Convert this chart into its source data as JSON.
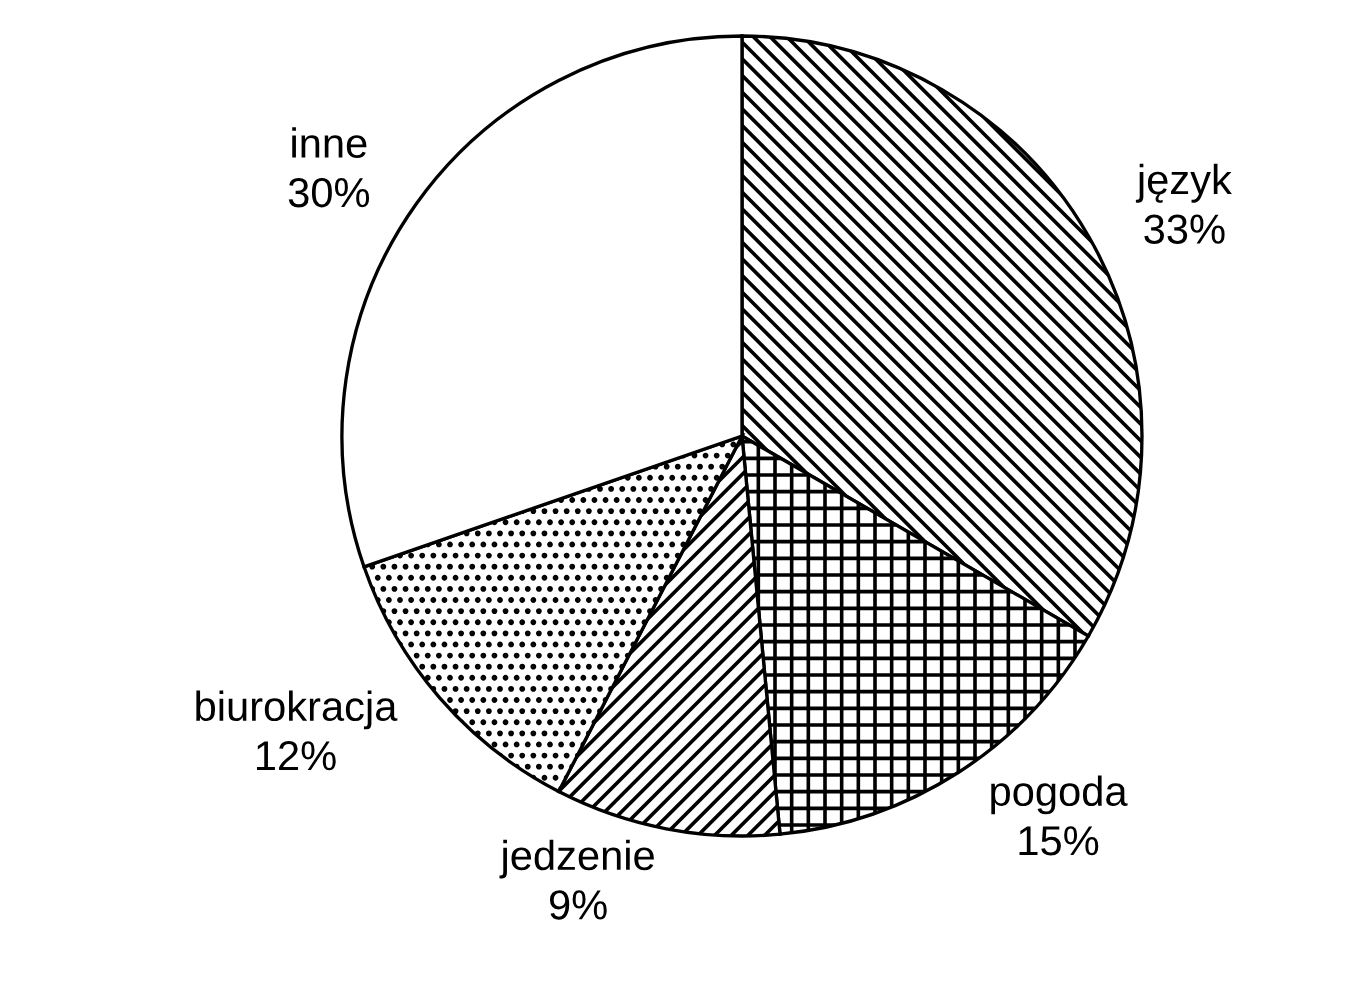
{
  "chart_data": {
    "type": "pie",
    "categories": [
      "język",
      "pogoda",
      "jedzenie",
      "biurokracja",
      "inne"
    ],
    "values": [
      33,
      15,
      9,
      12,
      30
    ],
    "value_labels": [
      "33%",
      "15%",
      "9%",
      "12%",
      "30%"
    ],
    "colors": [
      "#000000",
      "#000000",
      "#000000",
      "#000000",
      "#ffffff"
    ]
  }
}
